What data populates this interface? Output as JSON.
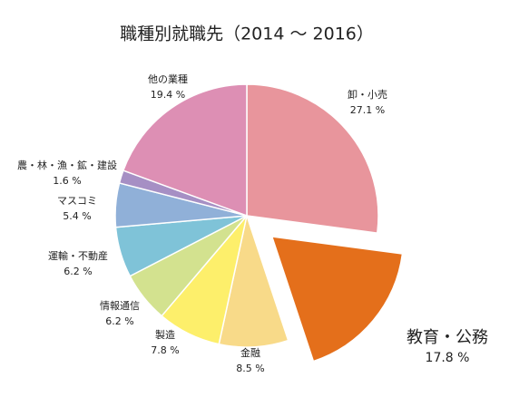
{
  "chart_data": {
    "type": "pie",
    "title": "職種別就職先（2014 ～ 2016）",
    "categories": [
      "卸・小売",
      "教育・公務",
      "金融",
      "製造",
      "情報通信",
      "運輸・不動産",
      "マスコミ",
      "農・林・漁・鉱・建設",
      "他の業種"
    ],
    "values": [
      27.1,
      17.8,
      8.5,
      7.8,
      6.2,
      6.2,
      5.4,
      1.6,
      19.4
    ],
    "value_labels": [
      "27.1 %",
      "17.8 %",
      "8.5 %",
      "7.8 %",
      "6.2 %",
      "6.2 %",
      "5.4 %",
      "1.6 %",
      "19.4 %"
    ],
    "colors": [
      "#e8959c",
      "#e46f1b",
      "#f8da89",
      "#fdef6b",
      "#d3e28f",
      "#7fc3d8",
      "#90b0d8",
      "#a68fc4",
      "#dd8fb4"
    ],
    "explode_index": 1
  }
}
